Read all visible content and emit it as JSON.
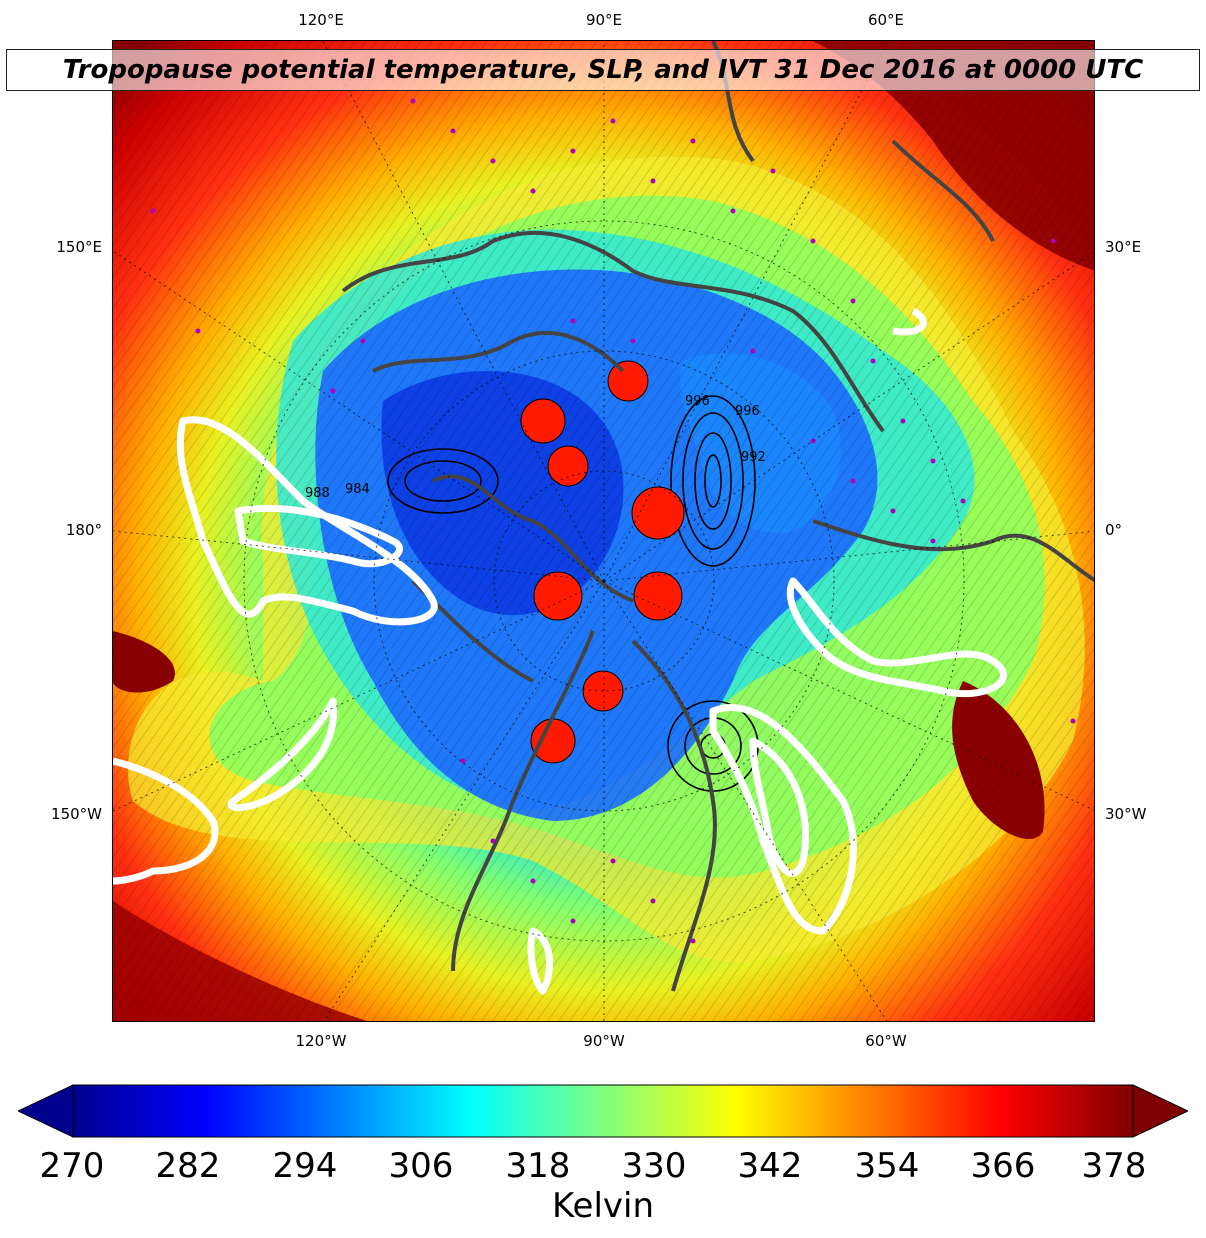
{
  "title": "Tropopause potential temperature, SLP, and IVT 31 Dec 2016 at 0000 UTC",
  "longitude_labels": {
    "top": [
      "120°E",
      "90°E",
      "60°E"
    ],
    "bottom": [
      "120°W",
      "90°W",
      "60°W"
    ],
    "left": [
      "150°E",
      "180°",
      "150°W"
    ],
    "right": [
      "30°E",
      "0°",
      "30°W"
    ]
  },
  "colorbar": {
    "label": "Kelvin",
    "ticks": [
      "270",
      "282",
      "294",
      "306",
      "318",
      "330",
      "342",
      "354",
      "366",
      "378"
    ],
    "min": 270,
    "max": 378,
    "extend": "both",
    "colormap": "jet"
  },
  "slp_contour_labels": [
    "996",
    "996",
    "992",
    "988",
    "984"
  ],
  "colors": {
    "polar_core": "#0040ff",
    "outer_ring": "#8b0000",
    "ivt_contours": "#ffffff",
    "coastlines": "#444444",
    "station_markers": "#b000c0"
  }
}
